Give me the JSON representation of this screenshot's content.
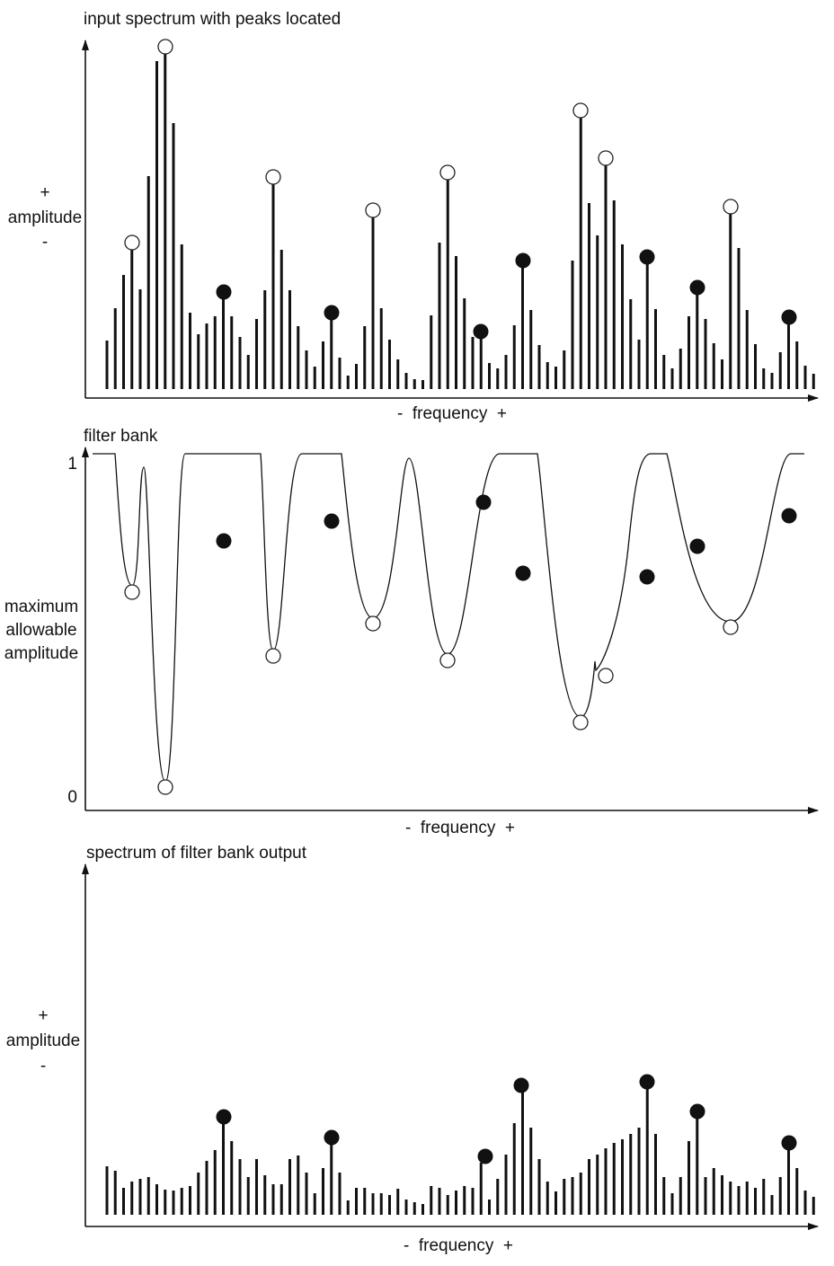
{
  "panels": [
    {
      "title": "input spectrum with peaks located",
      "y_label": [
        "+",
        "amplitude",
        "-"
      ],
      "x_label": "-  frequency  +"
    },
    {
      "title": "filter bank",
      "y_ticks": [
        1,
        0
      ],
      "y_label": [
        "maximum",
        "allowable",
        "amplitude"
      ],
      "x_label": "-  frequency  +"
    },
    {
      "title": "spectrum of filter bank output",
      "y_label": [
        "+",
        "amplitude",
        "-"
      ],
      "x_label": "-  frequency  +"
    }
  ]
}
